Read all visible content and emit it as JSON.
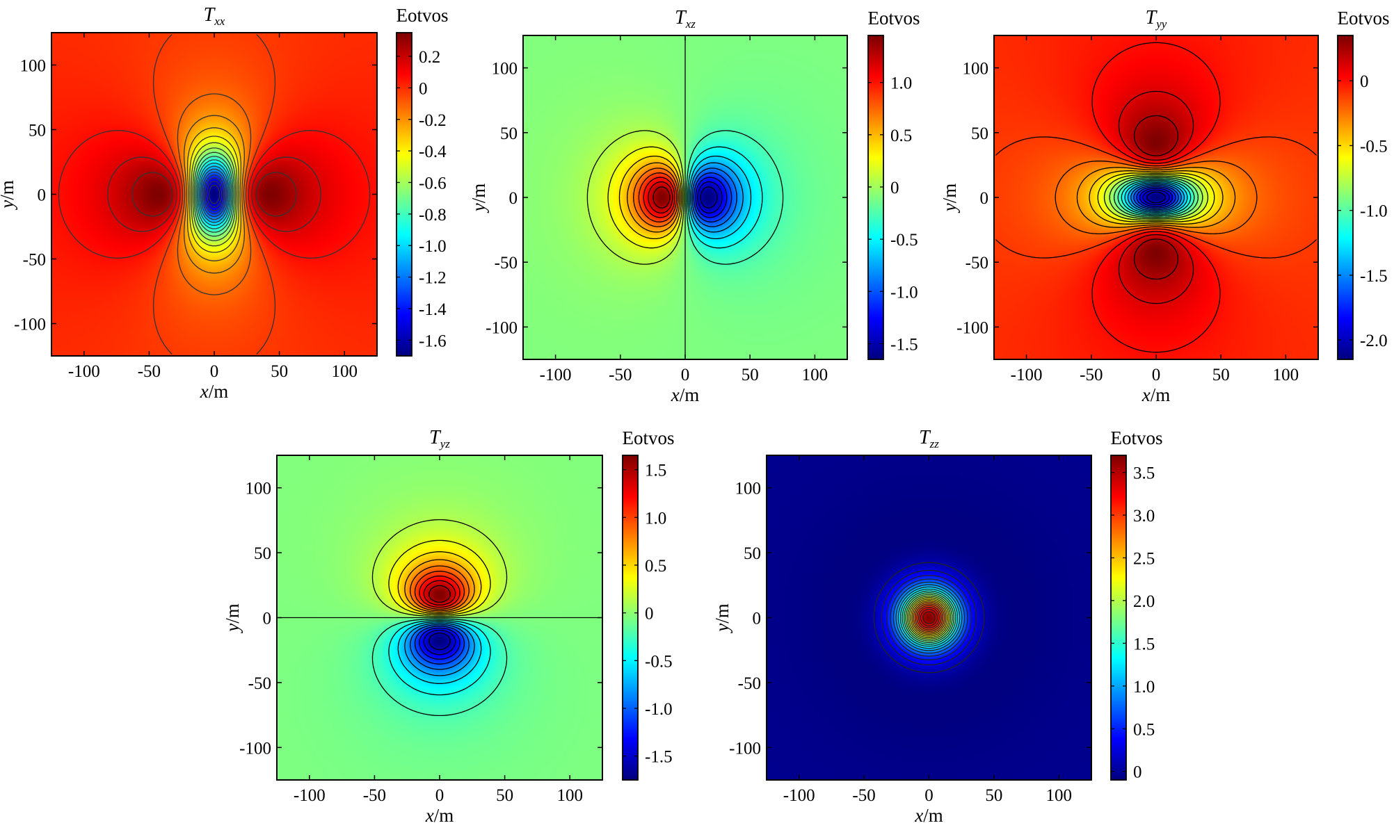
{
  "chart_data": [
    {
      "type": "heatmap",
      "title": "T",
      "title_subscript": "xx",
      "colorbar_label": "Eotvos",
      "xlabel_var": "x",
      "xlabel_unit": "/m",
      "ylabel_var": "y",
      "ylabel_unit": "/m",
      "xlim": [
        -125,
        125
      ],
      "ylim": [
        -125,
        125
      ],
      "xticks": [
        -100,
        -50,
        0,
        50,
        100
      ],
      "yticks": [
        -100,
        -50,
        0,
        50,
        100
      ],
      "tick_labels_x": [
        "-100",
        "-50",
        "0",
        "50",
        "100"
      ],
      "tick_labels_y": [
        "-100",
        "-50",
        "0",
        "50",
        "100"
      ],
      "clim": [
        -1.7,
        0.35
      ],
      "colorbar_ticks": [
        0.2,
        0,
        -0.2,
        -0.4,
        -0.6,
        -0.8,
        -1.0,
        -1.2,
        -1.4,
        -1.6
      ],
      "colorbar_tick_labels": [
        "0.2",
        "0",
        "-0.2",
        "-0.4",
        "-0.6",
        "-0.8",
        "-1.0",
        "-1.2",
        "-1.4",
        "-1.6"
      ],
      "colormap": "jet",
      "source_center": [
        0,
        0
      ],
      "source_depth_m": 35,
      "component": "xx",
      "contour_levels": 22,
      "contour_color": "#333333"
    },
    {
      "type": "heatmap",
      "title": "T",
      "title_subscript": "xz",
      "colorbar_label": "Eotvos",
      "xlabel_var": "x",
      "xlabel_unit": "/m",
      "ylabel_var": "y",
      "ylabel_unit": "/m",
      "xlim": [
        -125,
        125
      ],
      "ylim": [
        -125,
        125
      ],
      "xticks": [
        -100,
        -50,
        0,
        50,
        100
      ],
      "yticks": [
        -100,
        -50,
        0,
        50,
        100
      ],
      "tick_labels_x": [
        "-100",
        "-50",
        "0",
        "50",
        "100"
      ],
      "tick_labels_y": [
        "-100",
        "-50",
        "0",
        "50",
        "100"
      ],
      "clim": [
        -1.65,
        1.45
      ],
      "colorbar_ticks": [
        1.0,
        0.5,
        0,
        -0.5,
        -1.0,
        -1.5
      ],
      "colorbar_tick_labels": [
        "1.0",
        "0.5",
        "0",
        "-0.5",
        "-1.0",
        "-1.5"
      ],
      "colormap": "jet",
      "source_center": [
        0,
        0
      ],
      "source_depth_m": 35,
      "component": "xz",
      "contour_levels": 20,
      "contour_color": "#000000"
    },
    {
      "type": "heatmap",
      "title": "T",
      "title_subscript": "yy",
      "colorbar_label": "Eotvos",
      "xlabel_var": "x",
      "xlabel_unit": "/m",
      "ylabel_var": "y",
      "ylabel_unit": "/m",
      "xlim": [
        -125,
        125
      ],
      "ylim": [
        -125,
        125
      ],
      "xticks": [
        -100,
        -50,
        0,
        50,
        100
      ],
      "yticks": [
        -100,
        -50,
        0,
        50,
        100
      ],
      "tick_labels_x": [
        "-100",
        "-50",
        "0",
        "50",
        "100"
      ],
      "tick_labels_y": [
        "-100",
        "-50",
        "0",
        "50",
        "100"
      ],
      "clim": [
        -2.15,
        0.35
      ],
      "colorbar_ticks": [
        0,
        -0.5,
        -1.0,
        -1.5,
        -2.0
      ],
      "colorbar_tick_labels": [
        "0",
        "-0.5",
        "-1.0",
        "-1.5",
        "-2.0"
      ],
      "colormap": "jet",
      "source_center": [
        0,
        0
      ],
      "source_depth_m": 35,
      "component": "yy",
      "contour_levels": 22,
      "contour_color": "#000000"
    },
    {
      "type": "heatmap",
      "title": "T",
      "title_subscript": "yz",
      "colorbar_label": "Eotvos",
      "xlabel_var": "x",
      "xlabel_unit": "/m",
      "ylabel_var": "y",
      "ylabel_unit": "/m",
      "xlim": [
        -125,
        125
      ],
      "ylim": [
        -125,
        125
      ],
      "xticks": [
        -100,
        -50,
        0,
        50,
        100
      ],
      "yticks": [
        -100,
        -50,
        0,
        50,
        100
      ],
      "tick_labels_x": [
        "-100",
        "-50",
        "0",
        "50",
        "100"
      ],
      "tick_labels_y": [
        "-100",
        "-50",
        "0",
        "50",
        "100"
      ],
      "clim": [
        -1.75,
        1.65
      ],
      "colorbar_ticks": [
        1.5,
        1.0,
        0.5,
        0,
        -0.5,
        -1.0,
        -1.5
      ],
      "colorbar_tick_labels": [
        "1.5",
        "1.0",
        "0.5",
        "0",
        "-0.5",
        "-1.0",
        "-1.5"
      ],
      "colormap": "jet",
      "source_center": [
        0,
        0
      ],
      "source_depth_m": 35,
      "component": "yz",
      "contour_levels": 20,
      "contour_color": "#000000"
    },
    {
      "type": "heatmap",
      "title": "T",
      "title_subscript": "zz",
      "colorbar_label": "Eotvos",
      "xlabel_var": "x",
      "xlabel_unit": "/m",
      "ylabel_var": "y",
      "ylabel_unit": "/m",
      "xlim": [
        -125,
        125
      ],
      "ylim": [
        -125,
        125
      ],
      "xticks": [
        -100,
        -50,
        0,
        50,
        100
      ],
      "yticks": [
        -100,
        -50,
        0,
        50,
        100
      ],
      "tick_labels_x": [
        "-100",
        "-50",
        "0",
        "50",
        "100"
      ],
      "tick_labels_y": [
        "-100",
        "-50",
        "0",
        "50",
        "100"
      ],
      "clim": [
        -0.1,
        3.7
      ],
      "colorbar_ticks": [
        3.5,
        3.0,
        2.5,
        2.0,
        1.5,
        1.0,
        0.5,
        0
      ],
      "colorbar_tick_labels": [
        "3.5",
        "3.0",
        "2.5",
        "2.0",
        "1.5",
        "1.0",
        "0.5",
        "0"
      ],
      "colormap": "jet",
      "source_center": [
        0,
        0
      ],
      "source_depth_m": 35,
      "component": "zz",
      "contour_levels": 22,
      "contour_color": "#222222"
    }
  ]
}
